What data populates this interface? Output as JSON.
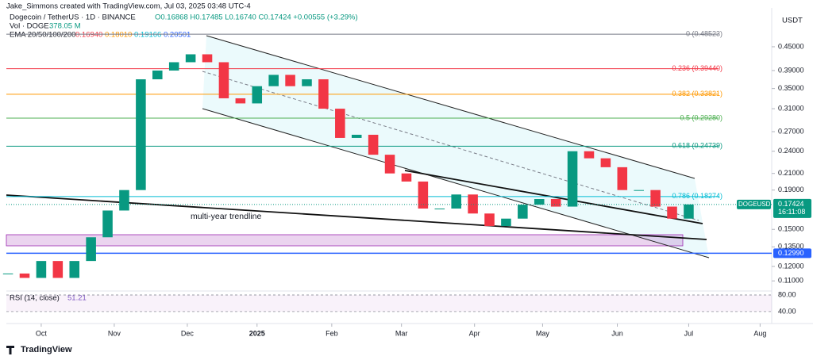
{
  "header": {
    "credit": "Jake_Simmons created with TradingView.com, Jul 03, 2025 03:48 UTC-4",
    "brand": "TradingView"
  },
  "chart_data": {
    "type": "candlestick",
    "symbol_line": "Dogecoin / TetherUS · 1D · BINANCE",
    "ohlc_text": "O0.16868 H0.17485 L0.16740 C0.17424 +0.00555 (+3.29%)",
    "volume_label": "Vol · DOGE",
    "volume_text": "378.05 M",
    "ema_label": "EMA 20/50/100/200",
    "ema_values": [
      "0.16940",
      "0.18010",
      "0.19166",
      "0.20501"
    ],
    "ema_colors": [
      "#f23645",
      "#ff9800",
      "#00bcd4",
      "#2962ff"
    ],
    "currency": "USDT",
    "annotation": "multi-year trendline",
    "log_scale": true,
    "up_color": "#089981",
    "down_color": "#f23645",
    "values": [
      0.115,
      0.112,
      0.124,
      0.112,
      0.124,
      0.143,
      0.168,
      0.19,
      0.37,
      0.39,
      0.41,
      0.43,
      0.41,
      0.33,
      0.32,
      0.355,
      0.38,
      0.355,
      0.37,
      0.31,
      0.26,
      0.265,
      0.235,
      0.21,
      0.2,
      0.17,
      0.17,
      0.185,
      0.165,
      0.153,
      0.16,
      0.174,
      0.18,
      0.172,
      0.24,
      0.23,
      0.218,
      0.19,
      0.19,
      0.172,
      0.16,
      0.17424
    ],
    "xlim": [
      -0.1,
      46
    ],
    "xticks": [
      {
        "value": 2.0,
        "label": "Oct"
      },
      {
        "value": 6.4,
        "label": "Nov"
      },
      {
        "value": 10.8,
        "label": "Dec"
      },
      {
        "value": 15.0,
        "label": "2025"
      },
      {
        "value": 19.5,
        "label": "Feb"
      },
      {
        "value": 23.7,
        "label": "Mar"
      },
      {
        "value": 28.1,
        "label": "Apr"
      },
      {
        "value": 32.2,
        "label": "May"
      },
      {
        "value": 36.7,
        "label": "Jun"
      },
      {
        "value": 41.0,
        "label": "Jul"
      },
      {
        "value": 45.3,
        "label": "Aug"
      }
    ],
    "ylim": [
      0.1045,
      0.555
    ],
    "yticks": [
      {
        "value": 0.45,
        "label": "0.45000"
      },
      {
        "value": 0.39,
        "label": "0.39000"
      },
      {
        "value": 0.35,
        "label": "0.35000"
      },
      {
        "value": 0.31,
        "label": "0.31000"
      },
      {
        "value": 0.27,
        "label": "0.27000"
      },
      {
        "value": 0.24,
        "label": "0.24000"
      },
      {
        "value": 0.21,
        "label": "0.21000"
      },
      {
        "value": 0.19,
        "label": "0.19000"
      },
      {
        "value": 0.15,
        "label": "0.15000"
      },
      {
        "value": 0.135,
        "label": "0.13500"
      },
      {
        "value": 0.12,
        "label": "0.12000"
      },
      {
        "value": 0.11,
        "label": "0.11000"
      }
    ],
    "fib_levels": [
      {
        "value": 0.48523,
        "label": "0 (0.48523)",
        "color": "#787b86"
      },
      {
        "value": 0.3944,
        "label": "0.236 (0.39440)",
        "color": "#f23645"
      },
      {
        "value": 0.33821,
        "label": "0.382 (0.33821)",
        "color": "#ff9800"
      },
      {
        "value": 0.2928,
        "label": "0.5 (0.29280)",
        "color": "#4caf50"
      },
      {
        "value": 0.24739,
        "label": "0.618 (0.24739)",
        "color": "#089981"
      },
      {
        "value": 0.18274,
        "label": "0.786 (0.18274)",
        "color": "#00bcd4"
      }
    ],
    "support": {
      "value": 0.1299,
      "label": "0.12990",
      "color": "#2962ff"
    },
    "last_price": {
      "value": 0.17424,
      "symbol": "DOGEUSDT",
      "label": "0.17424",
      "countdown": "16:11:08",
      "color": "#089981"
    },
    "rsi": {
      "label": "RSI (14, close)",
      "value_text": "51.21",
      "ylim": [
        17,
        87.6
      ],
      "yticks": [
        {
          "value": 80,
          "label": "80.00"
        },
        {
          "value": 40,
          "label": "40.00"
        }
      ]
    }
  }
}
